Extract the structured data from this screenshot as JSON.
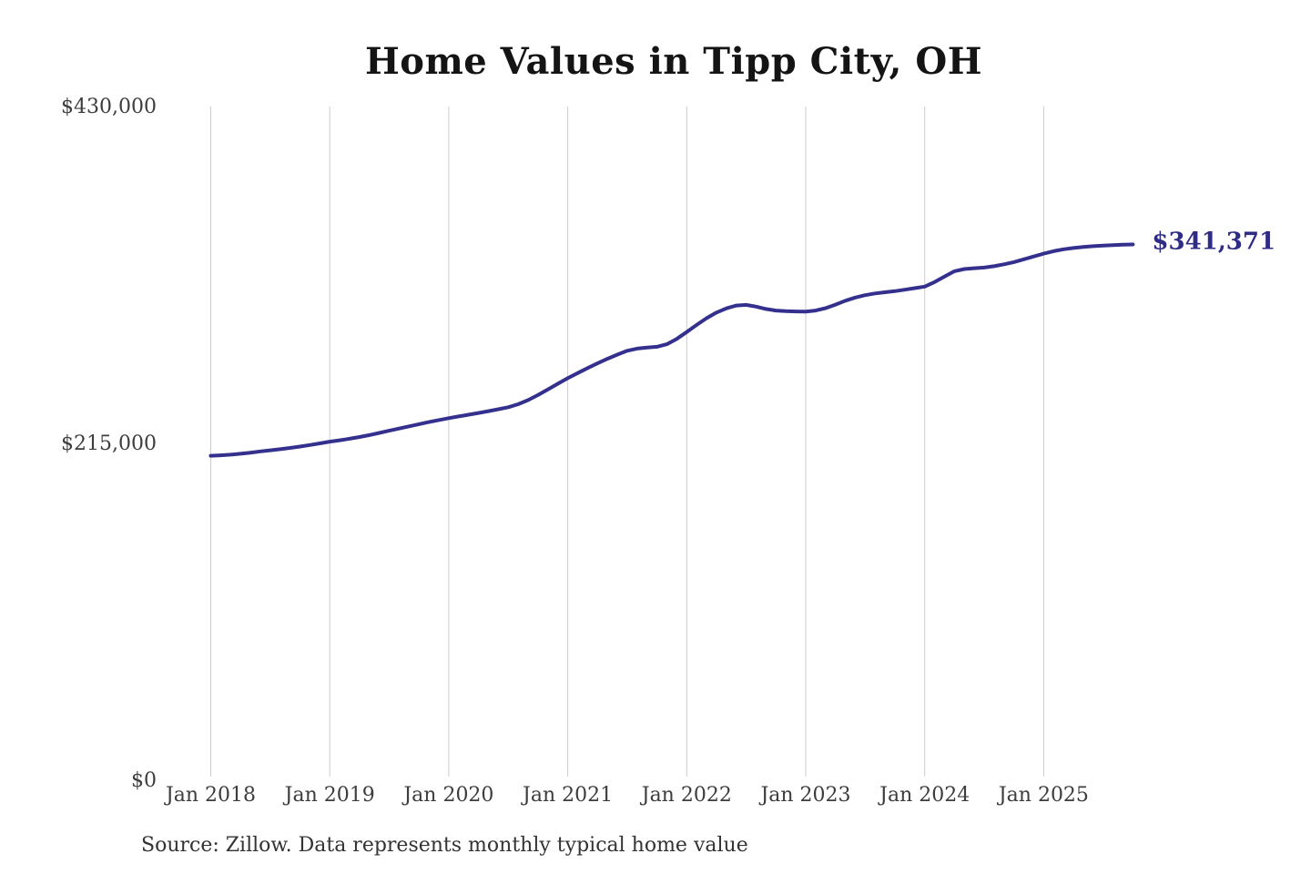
{
  "title": "Home Values in Tipp City, OH",
  "source_note": "Source: Zillow. Data represents monthly typical home value",
  "chart_data": {
    "type": "line",
    "title": "Home Values in Tipp City, OH",
    "xlabel": "",
    "ylabel": "",
    "ylim": [
      0,
      430000
    ],
    "grid": "vertical-only",
    "legend": "none",
    "line_color": "#34308e",
    "end_label_color": "#2f2c85",
    "grid_color": "#cccccc",
    "tick_label_color": "#3d3d3d",
    "last_value": 341371,
    "last_point_label": "$341,371",
    "y_ticks": [
      {
        "value": 0,
        "label": "$0"
      },
      {
        "value": 215000,
        "label": "$215,000"
      },
      {
        "value": 430000,
        "label": "$430,000"
      }
    ],
    "x_ticks": [
      {
        "month_index": 0,
        "label": "Jan 2018"
      },
      {
        "month_index": 12,
        "label": "Jan 2019"
      },
      {
        "month_index": 24,
        "label": "Jan 2020"
      },
      {
        "month_index": 36,
        "label": "Jan 2021"
      },
      {
        "month_index": 48,
        "label": "Jan 2022"
      },
      {
        "month_index": 60,
        "label": "Jan 2023"
      },
      {
        "month_index": 72,
        "label": "Jan 2024"
      },
      {
        "month_index": 84,
        "label": "Jan 2025"
      }
    ],
    "series": [
      {
        "name": "Monthly typical home value",
        "frequency": "monthly",
        "start": "2018-01",
        "end": "2025-10",
        "values": [
          206500,
          206800,
          207200,
          207800,
          208500,
          209300,
          210000,
          210700,
          211500,
          212400,
          213400,
          214400,
          215500,
          216400,
          217400,
          218500,
          219700,
          221100,
          222500,
          223900,
          225300,
          226700,
          228000,
          229300,
          230500,
          231600,
          232700,
          233800,
          235000,
          236200,
          237500,
          239400,
          242000,
          245300,
          248900,
          252500,
          256000,
          259300,
          262500,
          265500,
          268400,
          271100,
          273500,
          274900,
          275600,
          276100,
          277700,
          281100,
          285500,
          290000,
          294300,
          297900,
          300600,
          302400,
          302800,
          301700,
          300200,
          299200,
          298800,
          298600,
          298500,
          299200,
          300700,
          303000,
          305500,
          307500,
          309000,
          310100,
          310900,
          311600,
          312500,
          313500,
          314500,
          317400,
          320900,
          324300,
          325700,
          326200,
          326600,
          327500,
          328700,
          330100,
          331900,
          333700,
          335500,
          337100,
          338300,
          339100,
          339800,
          340300,
          340700,
          341000,
          341200,
          341371
        ]
      }
    ]
  }
}
